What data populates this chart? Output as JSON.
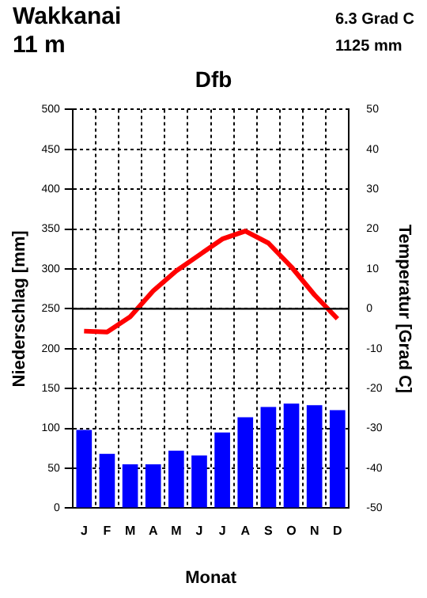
{
  "chart_data": {
    "type": "bar",
    "title": "Wakkanai",
    "subtitle": "11 m",
    "annotations": [
      "6.3 Grad C",
      "1125 mm",
      "Dfb"
    ],
    "categories": [
      "J",
      "F",
      "M",
      "A",
      "M",
      "J",
      "J",
      "A",
      "S",
      "O",
      "N",
      "D"
    ],
    "series": [
      {
        "color": "#0000ff",
        "values": [
          98,
          68,
          55,
          55,
          72,
          66,
          95,
          114,
          127,
          131,
          129,
          123
        ]
      },
      {
        "type": "line",
        "axis": "y2",
        "color": "#ff0000",
        "values": [
          -5.6,
          -5.8,
          -2,
          4.5,
          9.5,
          13.5,
          17.5,
          19.5,
          16.5,
          10.5,
          3.5,
          -2.5
        ]
      }
    ],
    "xlabel": "Monat",
    "ylabel": "Niederschlag [mm]",
    "y2label": "Temperatur [Grad C]",
    "ylim": [
      0,
      500
    ],
    "yticks": [
      0,
      50,
      100,
      150,
      200,
      250,
      300,
      350,
      400,
      450,
      500
    ],
    "y2lim": [
      -50,
      50
    ],
    "y2ticks": [
      -50,
      -40,
      -30,
      -20,
      -10,
      0,
      10,
      20,
      30,
      40,
      50
    ],
    "ref_lines": [
      {
        "axis": "y2",
        "value": 0
      }
    ],
    "grid": true,
    "legend": false,
    "marker": "none",
    "line_style": "solid"
  }
}
